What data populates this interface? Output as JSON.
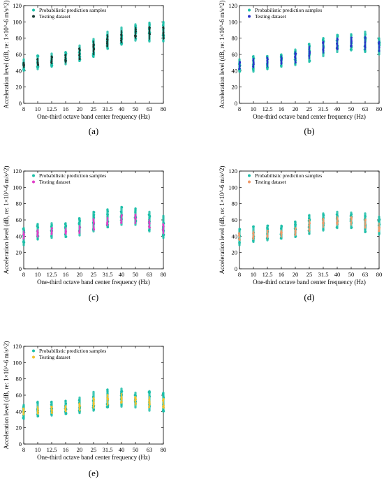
{
  "chart_data": [
    {
      "type": "scatter",
      "panel_label": "(a)",
      "xlabel": "One-third octave band center frequency (Hz)",
      "ylabel": "Acceleration level (dB, re: 1×10^-6 m/s^2)",
      "categories": [
        "8",
        "10",
        "12.5",
        "16",
        "20",
        "25",
        "31.5",
        "40",
        "50",
        "63",
        "80"
      ],
      "ylim": [
        0,
        120
      ],
      "yticks": [
        0,
        20,
        40,
        60,
        80,
        100,
        120
      ],
      "grid": false,
      "legend_position": "top-left",
      "series": [
        {
          "name": "Probabilistic prediction samples",
          "color": "#1fbfa9",
          "kind": "range",
          "min": [
            40,
            42,
            45,
            48,
            52,
            57,
            67,
            72,
            77,
            76,
            76
          ],
          "max": [
            54,
            59,
            61,
            63,
            71,
            79,
            88,
            93,
            97,
            99,
            100
          ]
        },
        {
          "name": "Testing dataset",
          "color": "#1a3a33",
          "kind": "range",
          "min": [
            44,
            47,
            49,
            50,
            54,
            60,
            70,
            75,
            80,
            79,
            79
          ],
          "max": [
            50,
            55,
            58,
            60,
            68,
            76,
            84,
            89,
            93,
            94,
            94
          ]
        }
      ]
    },
    {
      "type": "scatter",
      "panel_label": "(b)",
      "xlabel": "One-third octave band center frequency (Hz)",
      "ylabel": "Acceleration level (dB, re: 1×10^-6 m/s^2)",
      "categories": [
        "8",
        "10",
        "12.5",
        "16",
        "20",
        "25",
        "31.5",
        "40",
        "50",
        "63",
        "80"
      ],
      "ylim": [
        0,
        120
      ],
      "yticks": [
        0,
        20,
        40,
        60,
        80,
        100,
        120
      ],
      "grid": false,
      "legend_position": "top-left",
      "series": [
        {
          "name": "Probabilistic prediction samples",
          "color": "#1fbfa9",
          "kind": "range",
          "min": [
            39,
            39,
            42,
            45,
            47,
            51,
            58,
            63,
            65,
            63,
            60
          ],
          "max": [
            54,
            58,
            58,
            60,
            66,
            73,
            80,
            84,
            85,
            88,
            80
          ]
        },
        {
          "name": "Testing dataset",
          "color": "#2b34c9",
          "kind": "range",
          "min": [
            42,
            44,
            45,
            48,
            50,
            55,
            62,
            66,
            69,
            66,
            64
          ],
          "max": [
            51,
            55,
            56,
            58,
            63,
            70,
            76,
            80,
            81,
            82,
            76
          ]
        }
      ]
    },
    {
      "type": "scatter",
      "panel_label": "(c)",
      "xlabel": "One-third octave band center frequency (Hz)",
      "ylabel": "Acceleration level (dB, re: 1×10^-6 m/s^2)",
      "categories": [
        "8",
        "10",
        "12.5",
        "16",
        "20",
        "25",
        "31.5",
        "40",
        "50",
        "63",
        "80"
      ],
      "ylim": [
        0,
        120
      ],
      "yticks": [
        0,
        20,
        40,
        60,
        80,
        100,
        120
      ],
      "grid": false,
      "legend_position": "top-left",
      "series": [
        {
          "name": "Probabilistic prediction samples",
          "color": "#1fbfa9",
          "kind": "range",
          "min": [
            29,
            36,
            38,
            39,
            41,
            46,
            51,
            54,
            54,
            46,
            38
          ],
          "max": [
            50,
            55,
            56,
            56,
            62,
            70,
            73,
            76,
            74,
            70,
            65
          ]
        },
        {
          "name": "Testing dataset",
          "color": "#e040c8",
          "kind": "range",
          "min": [
            37,
            39,
            42,
            43,
            44,
            48,
            53,
            56,
            56,
            50,
            43
          ],
          "max": [
            46,
            48,
            50,
            50,
            53,
            62,
            63,
            66,
            67,
            60,
            55
          ]
        }
      ]
    },
    {
      "type": "scatter",
      "panel_label": "(d)",
      "xlabel": "One-third octave band center frequency (Hz)",
      "ylabel": "Acceleration level (dB, re: 1×10^-6 m/s^2)",
      "categories": [
        "8",
        "10",
        "12.5",
        "16",
        "20",
        "25",
        "31.5",
        "40",
        "50",
        "63",
        "80"
      ],
      "ylim": [
        0,
        120
      ],
      "yticks": [
        0,
        20,
        40,
        60,
        80,
        100,
        120
      ],
      "grid": false,
      "legend_position": "top-left",
      "series": [
        {
          "name": "Probabilistic prediction samples",
          "color": "#1fbfa9",
          "kind": "range",
          "min": [
            29,
            33,
            35,
            37,
            39,
            43,
            47,
            50,
            50,
            45,
            42
          ],
          "max": [
            49,
            52,
            53,
            53,
            58,
            66,
            68,
            70,
            69,
            68,
            64
          ]
        },
        {
          "name": "Testing dataset",
          "color": "#ef9a6a",
          "kind": "range",
          "min": [
            35,
            36,
            38,
            39,
            41,
            46,
            51,
            54,
            54,
            50,
            46
          ],
          "max": [
            44,
            46,
            47,
            47,
            50,
            60,
            62,
            64,
            64,
            61,
            56
          ]
        }
      ]
    },
    {
      "type": "scatter",
      "panel_label": "(e)",
      "xlabel": "One-third octave band center frequency (Hz)",
      "ylabel": "Acceleration level (dB, re: 1×10^-6 m/s^2)",
      "categories": [
        "8",
        "10",
        "12.5",
        "16",
        "20",
        "25",
        "31.5",
        "40",
        "50",
        "63",
        "80"
      ],
      "ylim": [
        0,
        120
      ],
      "yticks": [
        0,
        20,
        40,
        60,
        80,
        100,
        120
      ],
      "grid": false,
      "legend_position": "top-left",
      "series": [
        {
          "name": "Probabilistic prediction samples",
          "color": "#1fbfa9",
          "kind": "range",
          "min": [
            31,
            34,
            35,
            37,
            38,
            41,
            45,
            46,
            45,
            41,
            40
          ],
          "max": [
            48,
            52,
            52,
            53,
            57,
            64,
            67,
            68,
            63,
            65,
            63
          ]
        },
        {
          "name": "Testing dataset",
          "color": "#f2c230",
          "kind": "range",
          "min": [
            36,
            37,
            38,
            40,
            41,
            44,
            48,
            50,
            48,
            45,
            44
          ],
          "max": [
            44,
            46,
            46,
            47,
            50,
            57,
            61,
            62,
            58,
            58,
            56
          ]
        }
      ]
    }
  ]
}
